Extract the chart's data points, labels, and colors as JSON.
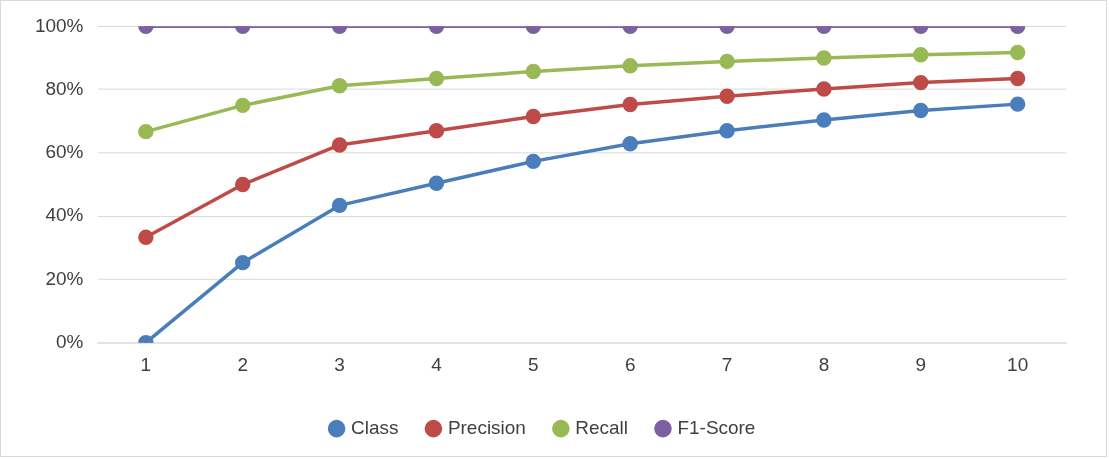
{
  "chart_data": {
    "type": "line",
    "categories": [
      "1",
      "2",
      "3",
      "4",
      "5",
      "6",
      "7",
      "8",
      "9",
      "10"
    ],
    "series": [
      {
        "name": "Class",
        "color": "#4a7ebb",
        "values": [
          0,
          25.3,
          43.4,
          50.4,
          57.3,
          62.9,
          67,
          70.4,
          73.4,
          75.4
        ]
      },
      {
        "name": "Precision",
        "color": "#be4b48",
        "values": [
          33.3,
          50,
          62.5,
          67,
          71.5,
          75.3,
          77.9,
          80.2,
          82.2,
          83.5
        ]
      },
      {
        "name": "Recall",
        "color": "#98b954",
        "values": [
          66.7,
          75,
          81.2,
          83.5,
          85.7,
          87.5,
          88.9,
          90,
          91,
          91.7
        ]
      },
      {
        "name": "F1-Score",
        "color": "#7d60a0",
        "values": [
          100,
          100,
          100,
          100,
          100,
          100,
          100,
          100,
          100,
          100
        ]
      }
    ],
    "ylim": [
      0,
      100
    ],
    "yticks": [
      {
        "value": 0,
        "label": "0%"
      },
      {
        "value": 20,
        "label": "20%"
      },
      {
        "value": 40,
        "label": "40%"
      },
      {
        "value": 60,
        "label": "60%"
      },
      {
        "value": 80,
        "label": "80%"
      },
      {
        "value": 100,
        "label": "100%"
      }
    ],
    "grid": "y",
    "legend": "bottom",
    "marker": "circle",
    "line_style": "solid"
  }
}
